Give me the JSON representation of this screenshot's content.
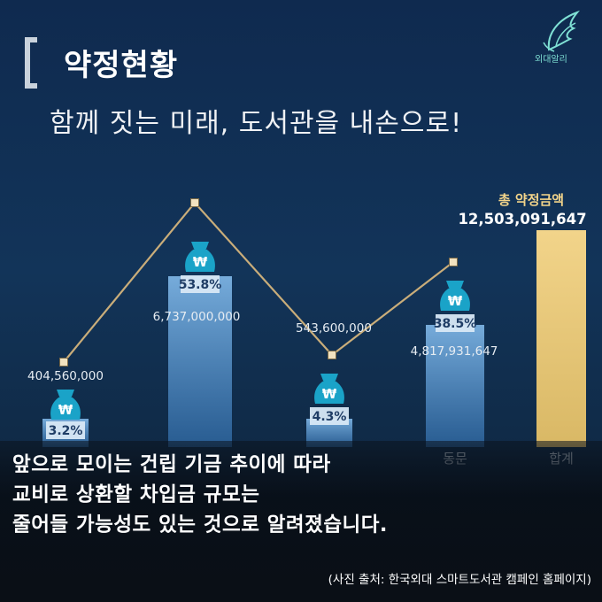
{
  "header": {
    "title": "약정현황",
    "subtitle": "함께 짓는 미래, 도서관을 내손으로!",
    "logo_text": "외대알리"
  },
  "chart_data": {
    "type": "bar",
    "categories": [
      "",
      "",
      "",
      "동문",
      "합계"
    ],
    "bars": [
      {
        "value": 404560000,
        "percent": "3.2%",
        "value_label": "404,560,000"
      },
      {
        "value": 6737000000,
        "percent": "53.8%",
        "value_label": "6,737,000,000"
      },
      {
        "value": 543600000,
        "percent": "4.3%",
        "value_label": "543,600,000"
      },
      {
        "value": 4817931647,
        "percent": "38.5%",
        "value_label": "4,817,931,647"
      },
      {
        "value": 12503091647,
        "percent": "",
        "value_label": ""
      }
    ],
    "line_values": [
      404560000,
      6737000000,
      543600000,
      4817931647
    ],
    "total_label": "총 약정금액",
    "total_value": "12,503,091,647",
    "icon": "money-bag-icon",
    "colors": {
      "bar": "#7fb6e6",
      "bar_dark": "#2f6aa6",
      "total_bar": "#f2d48a",
      "line": "#c9ad7a",
      "marker": "#f1e2c0",
      "icon": "#1aa3c8"
    }
  },
  "caption": {
    "line1": "앞으로 모이는 건립 기금 추이에 따라",
    "line2": "교비로 상환할 차입금 규모는",
    "line3": "줄어들 가능성도 있는 것으로 알려졌습니다."
  },
  "source": "(사진 출처: 한국외대 스마트도서관 캠페인 홈페이지)"
}
